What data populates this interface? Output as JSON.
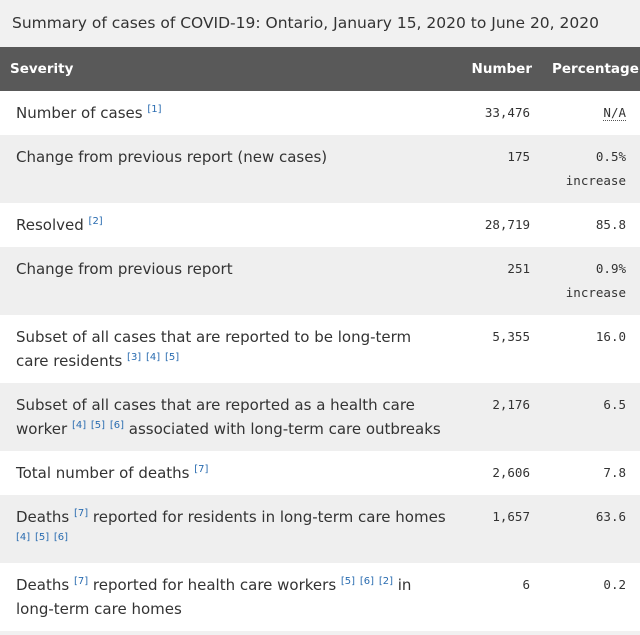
{
  "caption": "Summary of cases of COVID-19: Ontario, January 15, 2020 to June 20, 2020",
  "headers": {
    "severity": "Severity",
    "number": "Number",
    "percentage": "Percentage"
  },
  "rows": [
    {
      "parts": [
        {
          "t": "Number of cases "
        },
        {
          "r": "[1]"
        }
      ],
      "number": "33,476",
      "percentage": "N/A",
      "pct2": ""
    },
    {
      "parts": [
        {
          "t": "Change from previous report (new cases)"
        }
      ],
      "number": "175",
      "percentage": "0.5%",
      "pct2": "increase"
    },
    {
      "parts": [
        {
          "t": "Resolved "
        },
        {
          "r": "[2]"
        }
      ],
      "number": "28,719",
      "percentage": "85.8",
      "pct2": ""
    },
    {
      "parts": [
        {
          "t": "Change from previous report"
        }
      ],
      "number": "251",
      "percentage": "0.9%",
      "pct2": "increase"
    },
    {
      "parts": [
        {
          "t": "Subset of all cases that are reported to be long-term care residents "
        },
        {
          "r": "[3]"
        },
        {
          "r": "[4]"
        },
        {
          "r": "[5]"
        }
      ],
      "number": "5,355",
      "percentage": "16.0",
      "pct2": ""
    },
    {
      "parts": [
        {
          "t": "Subset of all cases that are reported as a health care worker "
        },
        {
          "r": "[4]"
        },
        {
          "r": "[5]"
        },
        {
          "r": "[6]"
        },
        {
          "t": " associated with long-term care outbreaks"
        }
      ],
      "number": "2,176",
      "percentage": "6.5",
      "pct2": ""
    },
    {
      "parts": [
        {
          "t": "Total number of deaths "
        },
        {
          "r": "[7]"
        }
      ],
      "number": "2,606",
      "percentage": "7.8",
      "pct2": ""
    },
    {
      "parts": [
        {
          "t": "Deaths "
        },
        {
          "r": "[7]"
        },
        {
          "t": " reported for residents in long-term care homes "
        },
        {
          "r": "[4]"
        },
        {
          "r": "[5]"
        },
        {
          "r": "[6]"
        }
      ],
      "number": "1,657",
      "percentage": "63.6",
      "pct2": ""
    },
    {
      "parts": [
        {
          "t": "Deaths "
        },
        {
          "r": "[7]"
        },
        {
          "t": " reported for health care workers "
        },
        {
          "r": "[5]"
        },
        {
          "r": "[6]"
        },
        {
          "r": "[2]"
        },
        {
          "t": " in long-term care homes"
        }
      ],
      "number": "6",
      "percentage": "0.2",
      "pct2": ""
    }
  ]
}
